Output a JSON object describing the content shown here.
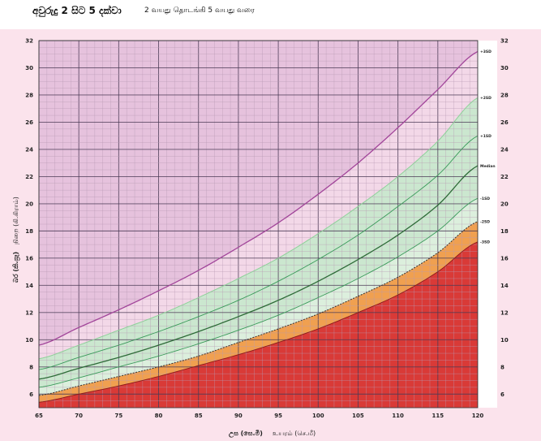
{
  "header": {
    "title_main": "අවුරුදු 2 සිට 5 දක්වා",
    "title_sub": "2 வயது தொடங்கி 5 வயது வரை"
  },
  "colors": {
    "panel_bg": "#fbe3ec",
    "above_3sd": "#e6c2dd",
    "normal_band": "#cbe7cf",
    "between_minus1_minus2": "#dcefdd",
    "between_minus2_minus3": "#f0a050",
    "below_minus3": "#d93a37",
    "curve_3sd": "#a2459a",
    "curve_green": "#3a9a5a",
    "curve_median": "#2e6b38",
    "grid_major": "#4a3a55",
    "grid_minor": "#b89ab3"
  },
  "chart_data": {
    "type": "line",
    "title": "අවුරුදු 2 සිට 5 දක්වා  2 வயது தொடங்கி 5 வயது வரை",
    "xlabel_si": "උස (සෙ.මී)",
    "xlabel_ta": "உயரம் (செ.மீ)",
    "ylabel_si": "බර (කි.ග්‍රෑ)",
    "ylabel_ta": "நிறை (கி.கிராம்)",
    "xlim": [
      65,
      120
    ],
    "ylim": [
      5,
      32
    ],
    "x_ticks": [
      65,
      70,
      75,
      80,
      85,
      90,
      95,
      100,
      105,
      110,
      115,
      120
    ],
    "y_ticks": [
      6,
      8,
      10,
      12,
      14,
      16,
      18,
      20,
      22,
      24,
      26,
      28,
      30,
      32
    ],
    "grid": true,
    "x": [
      65,
      70,
      75,
      80,
      85,
      90,
      95,
      100,
      105,
      110,
      115,
      120
    ],
    "series": [
      {
        "name": "+3SD",
        "values": [
          9.6,
          10.9,
          12.2,
          13.6,
          15.1,
          16.8,
          18.6,
          20.7,
          23.0,
          25.6,
          28.4,
          31.2
        ]
      },
      {
        "name": "+2SD",
        "values": [
          8.6,
          9.6,
          10.7,
          11.8,
          13.1,
          14.5,
          16.0,
          17.8,
          19.8,
          22.0,
          24.6,
          27.8
        ]
      },
      {
        "name": "+1SD",
        "values": [
          7.8,
          8.7,
          9.6,
          10.6,
          11.7,
          12.9,
          14.3,
          15.9,
          17.7,
          19.8,
          22.1,
          25.0
        ]
      },
      {
        "name": "Median",
        "values": [
          7.1,
          7.9,
          8.7,
          9.6,
          10.6,
          11.7,
          12.9,
          14.3,
          15.9,
          17.7,
          19.9,
          22.8
        ]
      },
      {
        "name": "-1SD",
        "values": [
          6.5,
          7.2,
          8.0,
          8.8,
          9.7,
          10.7,
          11.8,
          13.1,
          14.5,
          16.1,
          18.0,
          20.4
        ]
      },
      {
        "name": "-2SD",
        "values": [
          5.9,
          6.6,
          7.3,
          8.0,
          8.8,
          9.8,
          10.8,
          11.9,
          13.2,
          14.6,
          16.4,
          18.7
        ]
      },
      {
        "name": "-3SD",
        "values": [
          5.4,
          6.0,
          6.6,
          7.3,
          8.1,
          8.9,
          9.8,
          10.8,
          12.0,
          13.3,
          15.0,
          17.2
        ]
      }
    ]
  }
}
